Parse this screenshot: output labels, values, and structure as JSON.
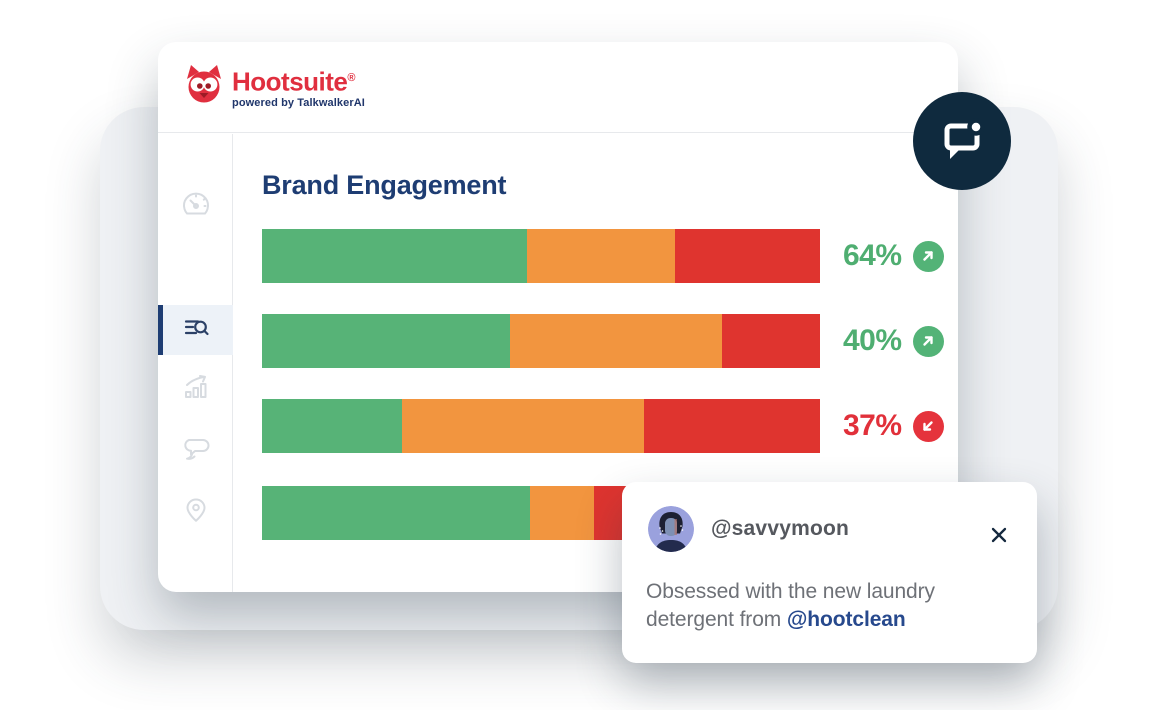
{
  "header": {
    "brand": "Hootsuite",
    "registered_mark": "®",
    "tagline": "powered by TalkwalkerAI"
  },
  "sidebar": {
    "items": [
      {
        "name": "dashboard",
        "icon": "gauge-icon",
        "active": false
      },
      {
        "name": "search-streams",
        "icon": "list-search-icon",
        "active": true
      },
      {
        "name": "analytics",
        "icon": "bar-chart-trend-icon",
        "active": false
      },
      {
        "name": "conversations",
        "icon": "chat-bubbles-icon",
        "active": false
      },
      {
        "name": "locations",
        "icon": "location-pin-icon",
        "active": false
      }
    ]
  },
  "main": {
    "title": "Brand Engagement"
  },
  "chart_data": {
    "type": "bar",
    "orientation": "horizontal",
    "stacked": true,
    "title": "Brand Engagement",
    "legend": false,
    "segment_colors": {
      "green": "#57b377",
      "orange": "#f2953f",
      "red": "#df342f"
    },
    "rows": [
      {
        "green": 47.5,
        "orange": 26.5,
        "red": 26.0,
        "label": "64%",
        "trend": "up"
      },
      {
        "green": 44.5,
        "orange": 38.0,
        "red": 17.5,
        "label": "40%",
        "trend": "up"
      },
      {
        "green": 25.0,
        "orange": 43.5,
        "red": 31.5,
        "label": "37%",
        "trend": "down"
      },
      {
        "green": 48.0,
        "orange": 11.5,
        "red": 40.5,
        "label": "",
        "trend": ""
      }
    ]
  },
  "notification_bubble": {
    "icon": "chat-notification-icon",
    "background": "#0f2a3e"
  },
  "comment_card": {
    "username": "@savvymoon",
    "line1": "Obsessed with the new laundry",
    "line2_prefix": "detergent from ",
    "mention": "@hootclean"
  },
  "colors": {
    "brand_red": "#e02f3f",
    "tagline_navy": "#20366b",
    "title_navy": "#1e3d73",
    "trend_up_green": "#4fae71",
    "trend_down_red": "#e1303a",
    "bar_green": "#57b377",
    "bar_orange": "#f2953f",
    "bar_red": "#df342f",
    "panel_bg": "#eff1f4",
    "card_bg": "#ffffff",
    "mention_blue": "#27498d",
    "sidebar_inactive_icon": "#d7dbe0",
    "sidebar_active_icon": "#2c4167"
  }
}
